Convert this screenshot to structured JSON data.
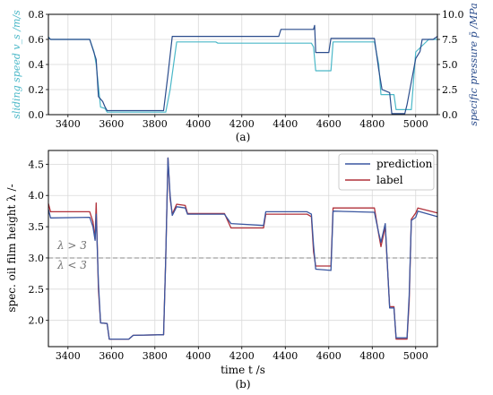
{
  "chart_data": [
    {
      "panel_label": "(a)",
      "type": "line",
      "ylabel_left": "sliding speed v_s /m/s",
      "ylabel_right": "specific pressure p̄ /MPa",
      "xlim": [
        3310,
        5100
      ],
      "ylim_left": [
        0,
        0.8
      ],
      "ylim_right": [
        0,
        10
      ],
      "xticks": [
        3400,
        3600,
        3800,
        4000,
        4200,
        4400,
        4600,
        4800,
        5000
      ],
      "yticks_left": [
        "0.0",
        "0.2",
        "0.4",
        "0.6",
        "0.8"
      ],
      "yticks_right": [
        "0.0",
        "2.5",
        "5.0",
        "7.5",
        "10.0"
      ],
      "grid": true,
      "series": [
        {
          "axis": "left",
          "color": "#4bb8c8",
          "points": [
            [
              3310,
              0.62
            ],
            [
              3320,
              0.6
            ],
            [
              3500,
              0.6
            ],
            [
              3520,
              0.5
            ],
            [
              3530,
              0.4
            ],
            [
              3550,
              0.06
            ],
            [
              3570,
              0.05
            ],
            [
              3580,
              0.02
            ],
            [
              3850,
              0.02
            ],
            [
              3870,
              0.2
            ],
            [
              3900,
              0.58
            ],
            [
              4080,
              0.58
            ],
            [
              4090,
              0.57
            ],
            [
              4520,
              0.57
            ],
            [
              4530,
              0.54
            ],
            [
              4540,
              0.35
            ],
            [
              4610,
              0.35
            ],
            [
              4620,
              0.58
            ],
            [
              4810,
              0.58
            ],
            [
              4830,
              0.4
            ],
            [
              4840,
              0.16
            ],
            [
              4900,
              0.16
            ],
            [
              4910,
              0.04
            ],
            [
              4980,
              0.04
            ],
            [
              4985,
              0.15
            ],
            [
              5000,
              0.5
            ],
            [
              5060,
              0.6
            ],
            [
              5100,
              0.6
            ]
          ]
        },
        {
          "axis": "right",
          "color": "#2a4c8c",
          "points": [
            [
              3310,
              7.7
            ],
            [
              3320,
              7.5
            ],
            [
              3500,
              7.5
            ],
            [
              3530,
              5.5
            ],
            [
              3540,
              1.8
            ],
            [
              3560,
              1.3
            ],
            [
              3570,
              0.8
            ],
            [
              3580,
              0.4
            ],
            [
              3840,
              0.4
            ],
            [
              3860,
              4.0
            ],
            [
              3880,
              7.8
            ],
            [
              4370,
              7.8
            ],
            [
              4380,
              8.5
            ],
            [
              4530,
              8.5
            ],
            [
              4535,
              8.9
            ],
            [
              4540,
              6.2
            ],
            [
              4600,
              6.2
            ],
            [
              4610,
              7.6
            ],
            [
              4810,
              7.6
            ],
            [
              4830,
              4.5
            ],
            [
              4845,
              2.5
            ],
            [
              4880,
              2.2
            ],
            [
              4890,
              0.1
            ],
            [
              4950,
              0.1
            ],
            [
              4960,
              1.0
            ],
            [
              5000,
              5.6
            ],
            [
              5020,
              6.3
            ],
            [
              5030,
              7.5
            ],
            [
              5080,
              7.5
            ],
            [
              5100,
              7.8
            ]
          ]
        }
      ]
    },
    {
      "panel_label": "(b)",
      "type": "line",
      "xlabel": "time t /s",
      "ylabel": "spec. oil film height λ /-",
      "xlim": [
        3310,
        5100
      ],
      "ylim": [
        1.58,
        4.72
      ],
      "xticks": [
        3400,
        3600,
        3800,
        4000,
        4200,
        4400,
        4600,
        4800,
        5000
      ],
      "yticks": [
        "2.0",
        "2.5",
        "3.0",
        "3.5",
        "4.0",
        "4.5"
      ],
      "grid": true,
      "legend_position": "top-right",
      "threshold": 3.0,
      "annotations": [
        "λ > 3",
        "λ < 3"
      ],
      "series": [
        {
          "name": "prediction",
          "color": "#3a56a0",
          "points": [
            [
              3310,
              3.78
            ],
            [
              3320,
              3.64
            ],
            [
              3500,
              3.65
            ],
            [
              3515,
              3.5
            ],
            [
              3525,
              3.28
            ],
            [
              3530,
              3.7
            ],
            [
              3540,
              2.6
            ],
            [
              3550,
              1.96
            ],
            [
              3580,
              1.95
            ],
            [
              3590,
              1.7
            ],
            [
              3680,
              1.7
            ],
            [
              3700,
              1.76
            ],
            [
              3840,
              1.77
            ],
            [
              3850,
              3.0
            ],
            [
              3860,
              4.6
            ],
            [
              3870,
              4.0
            ],
            [
              3880,
              3.68
            ],
            [
              3900,
              3.82
            ],
            [
              3940,
              3.8
            ],
            [
              3950,
              3.7
            ],
            [
              4120,
              3.7
            ],
            [
              4150,
              3.55
            ],
            [
              4300,
              3.52
            ],
            [
              4310,
              3.74
            ],
            [
              4500,
              3.74
            ],
            [
              4520,
              3.7
            ],
            [
              4530,
              3.2
            ],
            [
              4540,
              2.82
            ],
            [
              4610,
              2.8
            ],
            [
              4620,
              3.75
            ],
            [
              4810,
              3.73
            ],
            [
              4830,
              3.4
            ],
            [
              4840,
              3.25
            ],
            [
              4860,
              3.55
            ],
            [
              4880,
              2.2
            ],
            [
              4900,
              2.2
            ],
            [
              4910,
              1.72
            ],
            [
              4960,
              1.72
            ],
            [
              4970,
              2.4
            ],
            [
              4980,
              3.6
            ],
            [
              5000,
              3.65
            ],
            [
              5010,
              3.75
            ],
            [
              5100,
              3.66
            ]
          ]
        },
        {
          "name": "label",
          "color": "#b0303a",
          "points": [
            [
              3310,
              3.87
            ],
            [
              3320,
              3.74
            ],
            [
              3500,
              3.74
            ],
            [
              3515,
              3.58
            ],
            [
              3525,
              3.3
            ],
            [
              3530,
              3.88
            ],
            [
              3540,
              2.5
            ],
            [
              3550,
              1.96
            ],
            [
              3580,
              1.95
            ],
            [
              3590,
              1.7
            ],
            [
              3680,
              1.7
            ],
            [
              3700,
              1.76
            ],
            [
              3840,
              1.77
            ],
            [
              3850,
              3.0
            ],
            [
              3860,
              4.6
            ],
            [
              3870,
              3.95
            ],
            [
              3880,
              3.7
            ],
            [
              3900,
              3.86
            ],
            [
              3940,
              3.84
            ],
            [
              3950,
              3.71
            ],
            [
              4120,
              3.71
            ],
            [
              4150,
              3.48
            ],
            [
              4300,
              3.48
            ],
            [
              4310,
              3.7
            ],
            [
              4500,
              3.7
            ],
            [
              4520,
              3.66
            ],
            [
              4530,
              3.1
            ],
            [
              4540,
              2.87
            ],
            [
              4610,
              2.87
            ],
            [
              4620,
              3.8
            ],
            [
              4810,
              3.8
            ],
            [
              4830,
              3.38
            ],
            [
              4840,
              3.18
            ],
            [
              4860,
              3.5
            ],
            [
              4880,
              2.22
            ],
            [
              4900,
              2.22
            ],
            [
              4910,
              1.7
            ],
            [
              4960,
              1.7
            ],
            [
              4970,
              2.3
            ],
            [
              4980,
              3.62
            ],
            [
              5000,
              3.72
            ],
            [
              5010,
              3.8
            ],
            [
              5100,
              3.72
            ]
          ]
        }
      ]
    }
  ]
}
